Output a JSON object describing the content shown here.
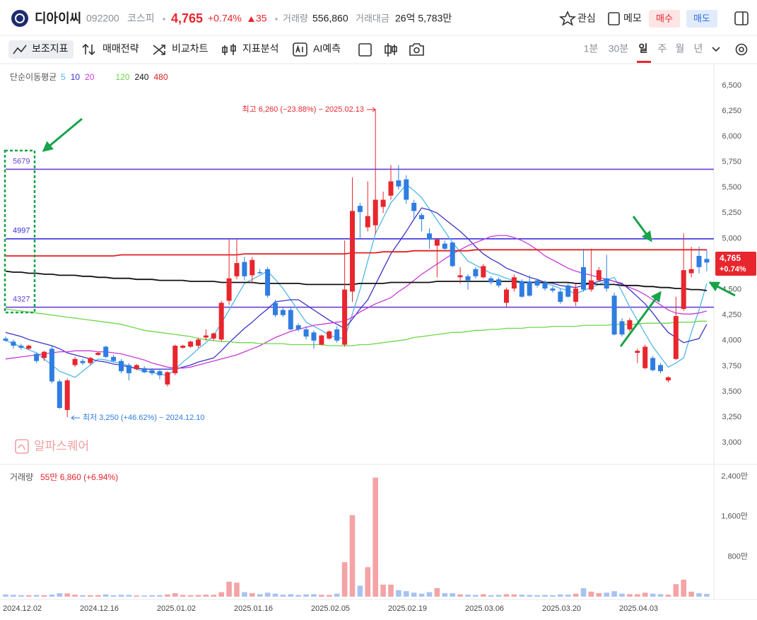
{
  "header": {
    "name": "디아이씨",
    "code": "092200",
    "market": "코스피",
    "price": "4,765",
    "change_pct": "+0.74%",
    "change": "35",
    "volume_label": "거래량",
    "volume": "556,860",
    "amount_label": "거래대금",
    "amount": "26억 5,783만",
    "actions": [
      "관심",
      "메모",
      "매수",
      "매도"
    ]
  },
  "toolbar": {
    "tools": [
      "보조지표",
      "매매전략",
      "비교차트",
      "지표분석",
      "AI예측"
    ],
    "periods": [
      "1분",
      "30분",
      "일",
      "주",
      "월",
      "년"
    ]
  },
  "watermark": "알파스퀘어",
  "chart_data": {
    "type": "candlestick",
    "categories": [
      "2024.12.02",
      null,
      null,
      null,
      null,
      null,
      null,
      null,
      null,
      null,
      "2024.12.16",
      null,
      null,
      null,
      null,
      null,
      null,
      null,
      null,
      null,
      "2025.01.02",
      null,
      null,
      null,
      null,
      null,
      null,
      null,
      null,
      null,
      "2025.01.16",
      null,
      null,
      null,
      null,
      null,
      null,
      null,
      null,
      null,
      "2025.02.05",
      null,
      null,
      null,
      null,
      null,
      null,
      null,
      null,
      null,
      "2025.02.19",
      null,
      null,
      null,
      null,
      null,
      null,
      null,
      null,
      null,
      "2025.03.06",
      null,
      null,
      null,
      null,
      null,
      null,
      null,
      null,
      null,
      "2025.03.20",
      null,
      null,
      null,
      null,
      null,
      null,
      null,
      null,
      null,
      "2025.04.03",
      null,
      null,
      null,
      null,
      null,
      null,
      null,
      null,
      null,
      null,
      null
    ],
    "open": [
      4020,
      3990,
      3950,
      3920,
      3870,
      3830,
      3920,
      3600,
      3320,
      3760,
      3800,
      3780,
      3860,
      3940,
      3840,
      3800,
      3760,
      3720,
      3730,
      3710,
      3700,
      3570,
      3680,
      3930,
      3940,
      3950,
      4030,
      4020,
      4010,
      4390,
      4630,
      4770,
      4640,
      4670,
      4700,
      4370,
      4300,
      4300,
      4150,
      4110,
      4080,
      3960,
      4020,
      4110,
      3960,
      4480,
      5320,
      5110,
      5130,
      5310,
      5420,
      5570,
      5580,
      5350,
      5230,
      5050,
      4930,
      4950,
      4960,
      4620,
      4630,
      4700,
      4620,
      4610,
      4600,
      4370,
      4510,
      4580,
      4580,
      4590,
      4570,
      4510,
      4480,
      4540,
      4380,
      4720,
      4500,
      4590,
      4610,
      4440,
      4190,
      4110,
      3880,
      3730,
      3830,
      3760,
      3610,
      3820,
      4310,
      4660,
      4830,
      4800
    ],
    "high": [
      4040,
      4010,
      3970,
      3960,
      3880,
      3900,
      3950,
      3620,
      3630,
      3840,
      3820,
      3840,
      3890,
      3950,
      3860,
      3820,
      3780,
      3770,
      3750,
      3730,
      3720,
      3700,
      3960,
      3960,
      4000,
      4030,
      4110,
      4080,
      4390,
      4990,
      4990,
      4820,
      4820,
      4700,
      4720,
      4400,
      4320,
      4320,
      4170,
      4140,
      4100,
      4060,
      4100,
      4140,
      4980,
      5600,
      5350,
      5560,
      6260,
      5460,
      5720,
      5720,
      5620,
      5380,
      5250,
      5100,
      5000,
      4980,
      4970,
      4720,
      4650,
      4720,
      4750,
      4630,
      4620,
      4520,
      4650,
      4600,
      4640,
      4600,
      4590,
      4530,
      4510,
      4560,
      4560,
      4900,
      4900,
      4720,
      4840,
      4470,
      4220,
      4220,
      3920,
      3960,
      3850,
      3780,
      3650,
      4430,
      5050,
      4920,
      4920,
      4890
    ],
    "low": [
      3990,
      3920,
      3910,
      3910,
      3780,
      3800,
      3580,
      3330,
      3250,
      3740,
      3760,
      3760,
      3850,
      3830,
      3790,
      3680,
      3610,
      3710,
      3680,
      3660,
      3620,
      3550,
      3660,
      3920,
      3930,
      3930,
      4000,
      4000,
      3990,
      4350,
      4600,
      4590,
      4560,
      4650,
      4420,
      4230,
      4230,
      4100,
      4090,
      4010,
      3920,
      3950,
      4010,
      3980,
      3940,
      4380,
      5000,
      5070,
      5040,
      5250,
      5380,
      5480,
      5340,
      5200,
      5070,
      4900,
      4620,
      4880,
      4720,
      4560,
      4500,
      4610,
      4610,
      4550,
      4520,
      4330,
      4480,
      4420,
      4430,
      4520,
      4490,
      4470,
      4360,
      4420,
      4340,
      4480,
      4480,
      4580,
      4480,
      4050,
      4040,
      4090,
      3780,
      3720,
      3700,
      3680,
      3590,
      3810,
      4290,
      4620,
      4660,
      4680
    ],
    "close": [
      4000,
      3950,
      3930,
      3950,
      3800,
      3890,
      3600,
      3340,
      3610,
      3820,
      3780,
      3830,
      3880,
      3840,
      3800,
      3700,
      3680,
      3760,
      3690,
      3680,
      3660,
      3690,
      3950,
      3950,
      3990,
      4010,
      4050,
      4070,
      4370,
      4610,
      4760,
      4630,
      4790,
      4660,
      4440,
      4250,
      4250,
      4110,
      4110,
      4040,
      4000,
      4050,
      4090,
      4000,
      4500,
      5270,
      5260,
      5220,
      5380,
      5380,
      5560,
      5510,
      5380,
      5270,
      5190,
      4990,
      4990,
      4900,
      4730,
      4640,
      4590,
      4630,
      4730,
      4570,
      4540,
      4500,
      4620,
      4430,
      4440,
      4540,
      4510,
      4490,
      4380,
      4430,
      4510,
      4500,
      4590,
      4690,
      4510,
      4060,
      4060,
      4200,
      3900,
      3940,
      3710,
      3700,
      3640,
      4240,
      4690,
      4700,
      4720,
      4765
    ],
    "up_color": "#e8262d",
    "down_color": "#2f7de1",
    "ylim": [
      2800,
      6700
    ],
    "yticks": [
      {
        "value": 3000,
        "label": "3,000"
      },
      {
        "value": 3250,
        "label": "3,250"
      },
      {
        "value": 3500,
        "label": "3,500"
      },
      {
        "value": 3750,
        "label": "3,750"
      },
      {
        "value": 4000,
        "label": "4,000"
      },
      {
        "value": 4250,
        "label": "4,250"
      },
      {
        "value": 4500,
        "label": "4,500"
      },
      {
        "value": 4750,
        "label": "4,750"
      },
      {
        "value": 5000,
        "label": "5,000"
      },
      {
        "value": 5250,
        "label": "5,250"
      },
      {
        "value": 5500,
        "label": "5,500"
      },
      {
        "value": 5750,
        "label": "5,750"
      },
      {
        "value": 6000,
        "label": "6,000"
      },
      {
        "value": 6250,
        "label": "6,250"
      },
      {
        "value": 6500,
        "label": "6,500"
      }
    ],
    "grid": false,
    "ma_label": "단순이동평균",
    "series": [
      {
        "name": "5",
        "color": "#4fb8e8",
        "values": [
          4000,
          3970,
          3940,
          3910,
          3880,
          3820,
          3760,
          3700,
          3670,
          3640,
          3700,
          3760,
          3820,
          3810,
          3790,
          3780,
          3750,
          3720,
          3700,
          3690,
          3670,
          3660,
          3720,
          3790,
          3850,
          3920,
          3980,
          4050,
          4170,
          4300,
          4430,
          4560,
          4600,
          4640,
          4680,
          4600,
          4510,
          4400,
          4290,
          4180,
          4140,
          4100,
          4050,
          4030,
          4020,
          4260,
          4500,
          4780,
          5050,
          5200,
          5350,
          5440,
          5530,
          5470,
          5400,
          5290,
          5180,
          5070,
          4960,
          4870,
          4780,
          4740,
          4700,
          4660,
          4640,
          4610,
          4590,
          4580,
          4570,
          4570,
          4560,
          4540,
          4510,
          4490,
          4460,
          4490,
          4520,
          4550,
          4590,
          4620,
          4480,
          4330,
          4200,
          4070,
          3940,
          3840,
          3740,
          3780,
          3830,
          4080,
          4300,
          4560
        ]
      },
      {
        "name": "10",
        "color": "#3b33c8",
        "values": [
          4080,
          4060,
          4040,
          4010,
          3990,
          3970,
          3950,
          3920,
          3880,
          3860,
          3840,
          3820,
          3800,
          3790,
          3770,
          3760,
          3740,
          3730,
          3720,
          3720,
          3720,
          3720,
          3720,
          3740,
          3760,
          3790,
          3810,
          3830,
          3900,
          3980,
          4050,
          4120,
          4180,
          4250,
          4310,
          4380,
          4390,
          4400,
          4400,
          4350,
          4300,
          4250,
          4200,
          4160,
          4120,
          4210,
          4310,
          4400,
          4550,
          4700,
          4850,
          4960,
          5070,
          5190,
          5300,
          5280,
          5250,
          5190,
          5130,
          5070,
          5000,
          4920,
          4850,
          4800,
          4760,
          4710,
          4680,
          4650,
          4620,
          4600,
          4570,
          4560,
          4540,
          4530,
          4520,
          4540,
          4560,
          4580,
          4600,
          4580,
          4560,
          4500,
          4430,
          4360,
          4270,
          4170,
          4080,
          4030,
          3980,
          4000,
          4020,
          4160
        ]
      },
      {
        "name": "20",
        "color": "#c83ad6",
        "values": [
          3820,
          3830,
          3840,
          3850,
          3860,
          3870,
          3880,
          3890,
          3890,
          3900,
          3900,
          3900,
          3890,
          3890,
          3880,
          3870,
          3850,
          3830,
          3810,
          3780,
          3760,
          3740,
          3730,
          3730,
          3740,
          3760,
          3780,
          3800,
          3820,
          3840,
          3860,
          3890,
          3920,
          3950,
          3990,
          4030,
          4060,
          4090,
          4110,
          4130,
          4150,
          4160,
          4170,
          4180,
          4190,
          4230,
          4280,
          4320,
          4360,
          4390,
          4420,
          4480,
          4530,
          4590,
          4650,
          4700,
          4750,
          4800,
          4850,
          4890,
          4930,
          4960,
          4990,
          5020,
          5030,
          5030,
          5010,
          4980,
          4940,
          4890,
          4830,
          4790,
          4750,
          4710,
          4680,
          4660,
          4640,
          4620,
          4600,
          4580,
          4550,
          4520,
          4490,
          4450,
          4400,
          4350,
          4300,
          4270,
          4260,
          4260,
          4270,
          4290
        ]
      },
      {
        "name": "120",
        "color": "#6fd64a",
        "values": [
          4310,
          4300,
          4290,
          4280,
          4270,
          4260,
          4250,
          4240,
          4230,
          4220,
          4210,
          4200,
          4190,
          4180,
          4170,
          4160,
          4140,
          4120,
          4100,
          4090,
          4080,
          4070,
          4060,
          4050,
          4040,
          4020,
          4010,
          4000,
          3990,
          3990,
          3980,
          3980,
          3980,
          3970,
          3970,
          3970,
          3970,
          3960,
          3960,
          3960,
          3960,
          3960,
          3950,
          3950,
          3950,
          3950,
          3960,
          3960,
          3970,
          3980,
          3990,
          4000,
          4010,
          4030,
          4040,
          4050,
          4060,
          4070,
          4080,
          4080,
          4090,
          4100,
          4100,
          4110,
          4110,
          4120,
          4120,
          4120,
          4130,
          4130,
          4130,
          4140,
          4140,
          4140,
          4140,
          4150,
          4150,
          4150,
          4150,
          4160,
          4160,
          4160,
          4160,
          4170,
          4170,
          4170,
          4170,
          4180,
          4180,
          4180,
          4190,
          4190
        ]
      },
      {
        "name": "240",
        "color": "#111111",
        "values": [
          4680,
          4670,
          4670,
          4660,
          4660,
          4650,
          4650,
          4640,
          4640,
          4640,
          4630,
          4630,
          4620,
          4620,
          4610,
          4610,
          4610,
          4600,
          4600,
          4600,
          4590,
          4590,
          4590,
          4590,
          4580,
          4580,
          4580,
          4580,
          4570,
          4570,
          4570,
          4570,
          4570,
          4560,
          4560,
          4560,
          4560,
          4560,
          4560,
          4550,
          4550,
          4550,
          4550,
          4550,
          4550,
          4550,
          4560,
          4560,
          4560,
          4560,
          4570,
          4570,
          4570,
          4570,
          4570,
          4570,
          4580,
          4580,
          4580,
          4580,
          4580,
          4580,
          4580,
          4580,
          4580,
          4580,
          4580,
          4570,
          4570,
          4570,
          4570,
          4570,
          4570,
          4570,
          4560,
          4560,
          4560,
          4550,
          4550,
          4550,
          4540,
          4540,
          4540,
          4530,
          4530,
          4520,
          4520,
          4510,
          4510,
          4500,
          4500,
          4490
        ]
      },
      {
        "name": "480",
        "color": "#e02020",
        "values": [
          4830,
          4830,
          4830,
          4830,
          4830,
          4830,
          4830,
          4830,
          4830,
          4830,
          4830,
          4830,
          4830,
          4830,
          4830,
          4840,
          4840,
          4840,
          4840,
          4840,
          4840,
          4840,
          4840,
          4840,
          4840,
          4840,
          4840,
          4840,
          4840,
          4840,
          4840,
          4850,
          4850,
          4850,
          4850,
          4850,
          4850,
          4850,
          4850,
          4850,
          4850,
          4850,
          4850,
          4850,
          4850,
          4860,
          4860,
          4860,
          4860,
          4870,
          4870,
          4870,
          4870,
          4880,
          4880,
          4880,
          4880,
          4880,
          4880,
          4880,
          4880,
          4890,
          4890,
          4890,
          4890,
          4890,
          4890,
          4890,
          4890,
          4890,
          4890,
          4890,
          4890,
          4890,
          4890,
          4890,
          4890,
          4890,
          4890,
          4890,
          4890,
          4890,
          4890,
          4890,
          4890,
          4890,
          4890,
          4890,
          4890,
          4890,
          4890,
          4890
        ]
      }
    ],
    "levels": [
      {
        "value": 5679,
        "color": "#6a3fd6"
      },
      {
        "value": 4997,
        "color": "#3a30e0"
      },
      {
        "value": 4327,
        "color": "#6a3fd6"
      }
    ],
    "annotations": {
      "high": "최고 6,260 (−23.88%) − 2025.02.13",
      "low": "최저 3,250 (+46.62%) − 2024.12.10"
    },
    "volume": {
      "label": "거래량",
      "summary": "55만 6,860 (+6.94%)",
      "values": [
        450000,
        380000,
        300000,
        280000,
        350000,
        300000,
        420000,
        700000,
        650000,
        400000,
        300000,
        280000,
        320000,
        450000,
        300000,
        380000,
        350000,
        250000,
        230000,
        280000,
        300000,
        450000,
        700000,
        350000,
        300000,
        350000,
        400000,
        380000,
        900000,
        3000000,
        2800000,
        900000,
        700000,
        500000,
        800000,
        600000,
        400000,
        500000,
        350000,
        450000,
        500000,
        380000,
        350000,
        600000,
        6900000,
        16300000,
        2200000,
        5900000,
        23800000,
        2400000,
        2400000,
        1300000,
        1100000,
        800000,
        600000,
        900000,
        1700000,
        700000,
        700000,
        450000,
        400000,
        350000,
        500000,
        300000,
        350000,
        500000,
        450000,
        400000,
        350000,
        300000,
        350000,
        300000,
        450000,
        400000,
        600000,
        1700000,
        1000000,
        700000,
        800000,
        1100000,
        600000,
        500000,
        500000,
        800000,
        600000,
        500000,
        400000,
        2500000,
        3400000,
        1000000,
        700000,
        556860
      ],
      "up_color": "#f4a3a6",
      "down_color": "#a8c3f2",
      "ylim": [
        0,
        26000000
      ],
      "yticks": [
        {
          "value": 8000000,
          "label": "800만"
        },
        {
          "value": 16000000,
          "label": "1,600만"
        },
        {
          "value": 24000000,
          "label": "2,400만"
        }
      ]
    }
  }
}
